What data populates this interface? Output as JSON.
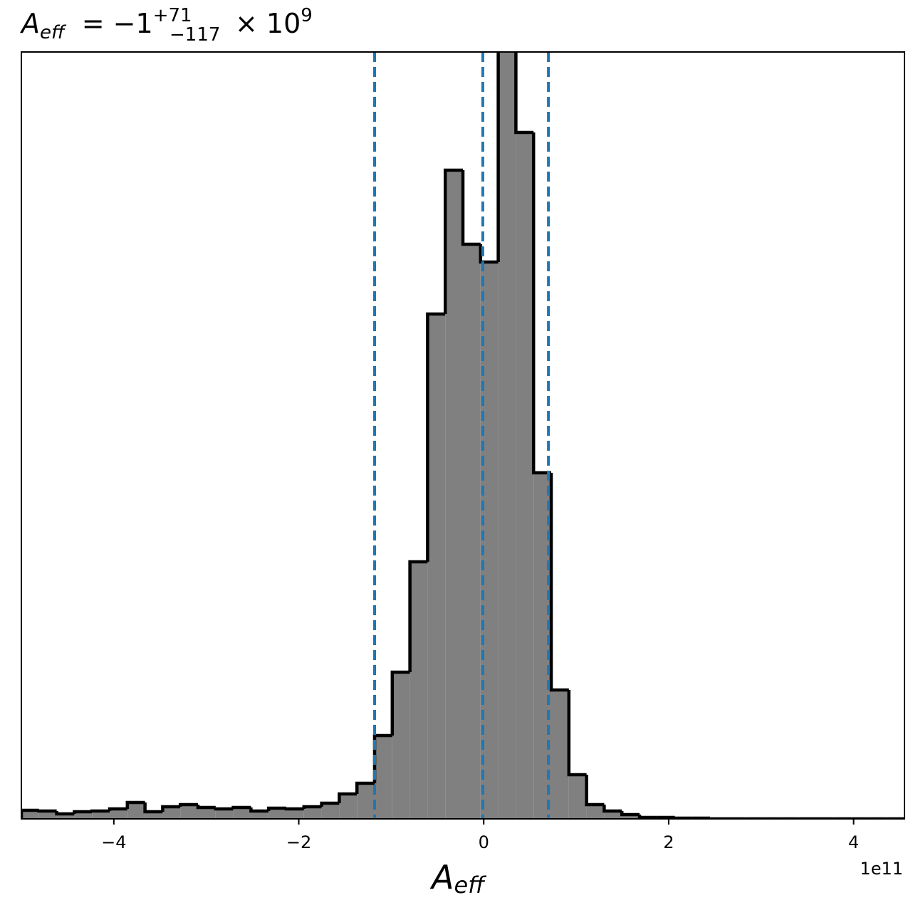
{
  "chart_data": {
    "type": "histogram",
    "title": {
      "symbol": "A",
      "subscript": "eff",
      "equals": "= −1",
      "upper": "+71",
      "lower": "−117",
      "times": "× 10",
      "exponent": "9"
    },
    "xlabel": {
      "symbol": "A",
      "subscript": "eff"
    },
    "x_offset_label": "1e11",
    "bins": [
      -5,
      -4.809,
      -4.618,
      -4.427,
      -4.236,
      -4.045,
      -3.854,
      -3.663,
      -3.472,
      -3.281,
      -3.09,
      -2.899,
      -2.708,
      -2.517,
      -2.326,
      -2.135,
      -1.944,
      -1.753,
      -1.562,
      -1.371,
      -1.18,
      -0.989,
      -0.798,
      -0.607,
      -0.416,
      -0.225,
      -0.034,
      0.157,
      0.348,
      0.539,
      0.73,
      0.921,
      1.112,
      1.303,
      1.494,
      1.685,
      1.876,
      2.067,
      2.258,
      2.449,
      2.64,
      2.831,
      3.022,
      3.213,
      3.404,
      3.595,
      3.786,
      3.977,
      4.168,
      4.359,
      4.55
    ],
    "counts": [
      12,
      11,
      7,
      10,
      11,
      14,
      23,
      10,
      17,
      20,
      16,
      14,
      16,
      11,
      15,
      14,
      17,
      22,
      35,
      50,
      117,
      206,
      361,
      709,
      911,
      807,
      782,
      1100,
      964,
      486,
      181,
      62,
      20,
      11,
      6,
      2,
      2,
      1,
      1,
      0,
      0,
      0,
      0,
      0,
      0,
      0,
      0,
      0,
      0,
      0
    ],
    "color": "#808080",
    "edge_color": "#000000",
    "xlim": [
      -5,
      4.55
    ],
    "ylim": [
      0,
      1077
    ],
    "xticks": [
      {
        "value": -4,
        "label": "−4"
      },
      {
        "value": -2,
        "label": "−2"
      },
      0,
      2,
      4
    ],
    "vlines": [
      -1.18,
      -0.01,
      0.7
    ],
    "vline_color": "#1f77b4"
  }
}
